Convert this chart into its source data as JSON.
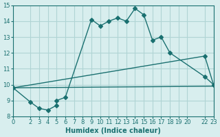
{
  "xlabel": "Humidex (Indice chaleur)",
  "bg_color": "#d8eeee",
  "grid_color": "#b0d4d4",
  "line_color": "#1a7070",
  "xlim": [
    0,
    23
  ],
  "ylim": [
    8,
    15
  ],
  "xticks": [
    0,
    2,
    3,
    4,
    5,
    6,
    7,
    8,
    9,
    10,
    11,
    12,
    13,
    14,
    15,
    16,
    17,
    18,
    19,
    20,
    22,
    23
  ],
  "yticks": [
    8,
    9,
    10,
    11,
    12,
    13,
    14,
    15
  ],
  "line1_x": [
    0,
    2,
    3,
    4,
    5,
    5,
    6,
    9,
    10,
    11,
    12,
    13,
    14,
    15,
    16,
    17,
    18,
    22,
    23
  ],
  "line1_y": [
    9.8,
    8.9,
    8.5,
    8.4,
    8.7,
    9.0,
    9.2,
    14.1,
    13.7,
    14.0,
    14.2,
    14.0,
    14.8,
    14.4,
    12.8,
    13.0,
    12.0,
    10.5,
    10.0
  ],
  "line2_x": [
    0,
    22,
    23
  ],
  "line2_y": [
    9.8,
    11.8,
    10.0
  ],
  "line3_x": [
    0,
    23
  ],
  "line3_y": [
    9.8,
    9.9
  ]
}
